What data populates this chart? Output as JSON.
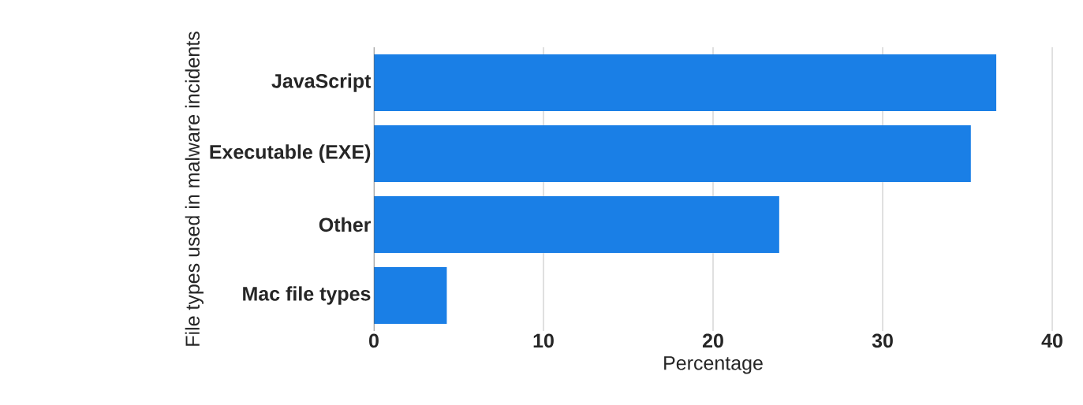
{
  "chart_data": {
    "type": "bar",
    "orientation": "horizontal",
    "categories": [
      "JavaScript",
      "Executable (EXE)",
      "Other",
      "Mac file types"
    ],
    "values": [
      36.7,
      35.2,
      23.9,
      4.3
    ],
    "color": "#1a7fe6",
    "xlim": [
      0,
      40
    ],
    "xticks": [
      0,
      10,
      20,
      30,
      40
    ],
    "grid": "x",
    "xlabel": "Percentage",
    "ylabel": "File types used in malware incidents"
  }
}
